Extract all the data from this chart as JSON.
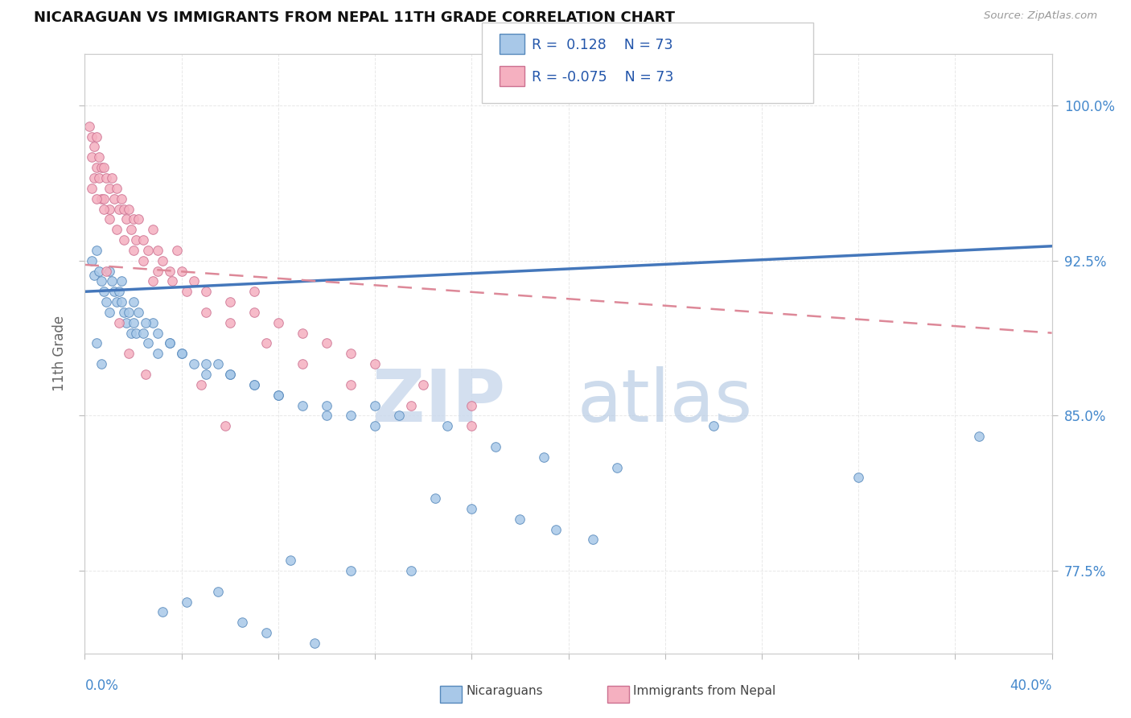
{
  "title": "NICARAGUAN VS IMMIGRANTS FROM NEPAL 11TH GRADE CORRELATION CHART",
  "source": "Source: ZipAtlas.com",
  "ylabel": "11th Grade",
  "xlim": [
    0.0,
    40.0
  ],
  "ylim": [
    73.5,
    102.5
  ],
  "r_blue": "0.128",
  "r_pink": "-0.075",
  "n_blue": 73,
  "n_pink": 73,
  "blue_color": "#a8c8e8",
  "blue_edge_color": "#5588bb",
  "pink_color": "#f5b0c0",
  "pink_edge_color": "#cc7090",
  "blue_line_color": "#4477bb",
  "pink_line_color": "#dd8898",
  "blue_trend_x0": 0.0,
  "blue_trend_x1": 40.0,
  "blue_trend_y0": 91.0,
  "blue_trend_y1": 93.2,
  "pink_trend_x0": 0.0,
  "pink_trend_x1": 40.0,
  "pink_trend_y0": 92.3,
  "pink_trend_y1": 89.0,
  "yticks": [
    77.5,
    85.0,
    92.5,
    100.0
  ],
  "xtick_count": 11,
  "grid_color": "#e8e8e8",
  "grid_style": "--",
  "background_color": "#ffffff",
  "tick_label_color": "#4488cc",
  "watermark_zip_color": "#c8d8ec",
  "watermark_atlas_color": "#b8cce4",
  "legend_color": "#2255aa",
  "blue_x": [
    0.3,
    0.4,
    0.5,
    0.5,
    0.6,
    0.7,
    0.7,
    0.8,
    0.9,
    1.0,
    1.0,
    1.1,
    1.2,
    1.3,
    1.4,
    1.5,
    1.6,
    1.7,
    1.8,
    1.9,
    2.0,
    2.1,
    2.2,
    2.4,
    2.6,
    2.8,
    3.0,
    3.5,
    4.0,
    4.5,
    5.0,
    5.5,
    6.0,
    7.0,
    8.0,
    9.0,
    10.0,
    11.0,
    12.0,
    13.0,
    15.0,
    17.0,
    19.0,
    22.0,
    26.0,
    32.0,
    37.0,
    1.5,
    2.0,
    2.5,
    3.0,
    3.5,
    4.0,
    5.0,
    6.0,
    7.0,
    8.0,
    10.0,
    12.0,
    14.5,
    16.0,
    18.0,
    19.5,
    21.0,
    8.5,
    11.0,
    13.5,
    5.5,
    4.2,
    3.2,
    6.5,
    7.5,
    9.5
  ],
  "blue_y": [
    92.5,
    91.8,
    93.0,
    88.5,
    92.0,
    91.5,
    87.5,
    91.0,
    90.5,
    92.0,
    90.0,
    91.5,
    91.0,
    90.5,
    91.0,
    90.5,
    90.0,
    89.5,
    90.0,
    89.0,
    89.5,
    89.0,
    90.0,
    89.0,
    88.5,
    89.5,
    88.0,
    88.5,
    88.0,
    87.5,
    87.0,
    87.5,
    87.0,
    86.5,
    86.0,
    85.5,
    85.5,
    85.0,
    85.5,
    85.0,
    84.5,
    83.5,
    83.0,
    82.5,
    84.5,
    82.0,
    84.0,
    91.5,
    90.5,
    89.5,
    89.0,
    88.5,
    88.0,
    87.5,
    87.0,
    86.5,
    86.0,
    85.0,
    84.5,
    81.0,
    80.5,
    80.0,
    79.5,
    79.0,
    78.0,
    77.5,
    77.5,
    76.5,
    76.0,
    75.5,
    75.0,
    74.5,
    74.0
  ],
  "pink_x": [
    0.2,
    0.3,
    0.3,
    0.4,
    0.4,
    0.5,
    0.5,
    0.6,
    0.6,
    0.7,
    0.7,
    0.8,
    0.8,
    0.9,
    1.0,
    1.0,
    1.1,
    1.2,
    1.3,
    1.4,
    1.5,
    1.6,
    1.7,
    1.8,
    1.9,
    2.0,
    2.1,
    2.2,
    2.4,
    2.6,
    2.8,
    3.0,
    3.2,
    3.5,
    3.8,
    4.0,
    4.5,
    5.0,
    6.0,
    7.0,
    8.0,
    9.0,
    10.0,
    11.0,
    12.0,
    14.0,
    16.0,
    0.3,
    0.5,
    0.8,
    1.0,
    1.3,
    1.6,
    2.0,
    2.4,
    3.0,
    3.6,
    4.2,
    5.0,
    6.0,
    7.5,
    9.0,
    11.0,
    13.5,
    16.0,
    7.0,
    4.8,
    2.5,
    1.8,
    0.9,
    1.4,
    2.8,
    5.8
  ],
  "pink_y": [
    99.0,
    98.5,
    97.5,
    98.0,
    96.5,
    98.5,
    97.0,
    97.5,
    96.5,
    97.0,
    95.5,
    97.0,
    95.5,
    96.5,
    96.0,
    95.0,
    96.5,
    95.5,
    96.0,
    95.0,
    95.5,
    95.0,
    94.5,
    95.0,
    94.0,
    94.5,
    93.5,
    94.5,
    93.5,
    93.0,
    94.0,
    93.0,
    92.5,
    92.0,
    93.0,
    92.0,
    91.5,
    91.0,
    90.5,
    90.0,
    89.5,
    89.0,
    88.5,
    88.0,
    87.5,
    86.5,
    85.5,
    96.0,
    95.5,
    95.0,
    94.5,
    94.0,
    93.5,
    93.0,
    92.5,
    92.0,
    91.5,
    91.0,
    90.0,
    89.5,
    88.5,
    87.5,
    86.5,
    85.5,
    84.5,
    91.0,
    86.5,
    87.0,
    88.0,
    92.0,
    89.5,
    91.5,
    84.5
  ]
}
